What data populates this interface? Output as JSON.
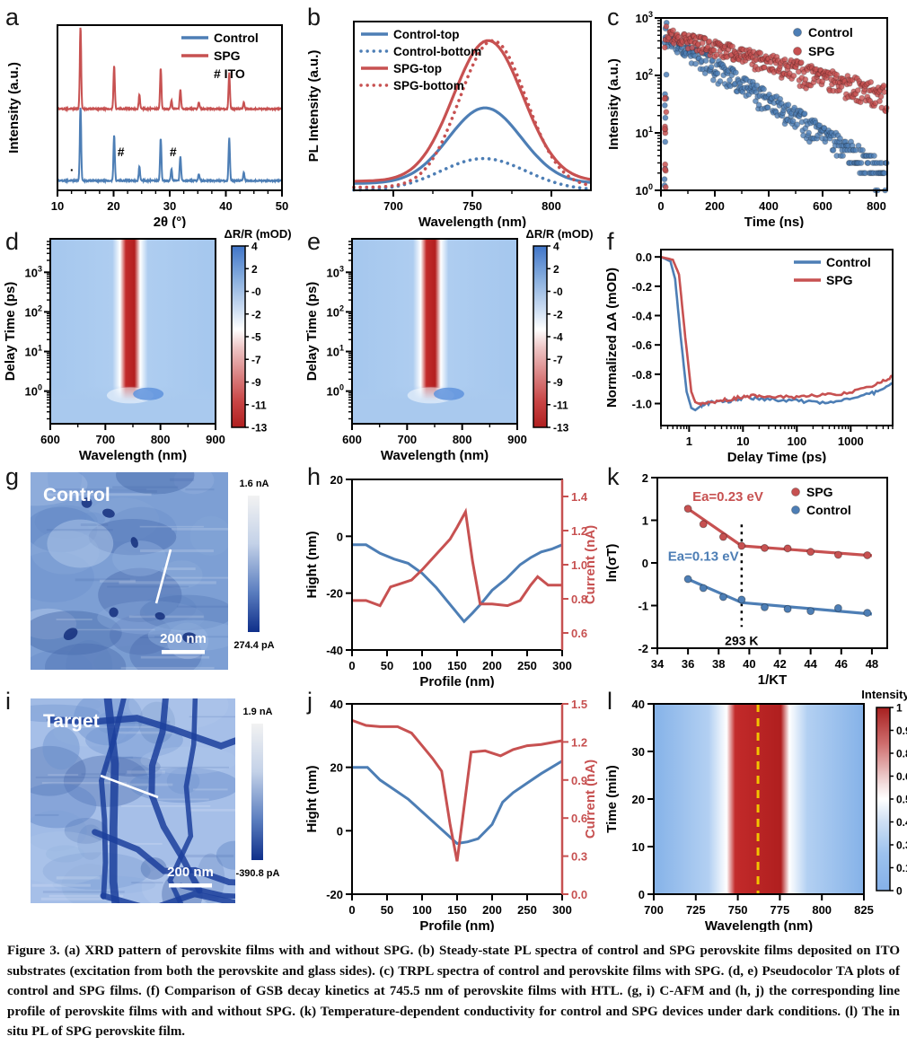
{
  "figure": {
    "caption": "Figure 3. (a) XRD pattern of perovskite films with and without SPG. (b) Steady-state PL spectra of control and SPG perovskite films deposited on ITO substrates (excitation from both the perovskite and glass sides). (c) TRPL spectra of control and perovskite films with SPG. (d, e) Pseudocolor TA plots of control and SPG films. (f) Comparison of GSB decay kinetics at 745.5 nm of perovskite films with HTL. (g, i) C-AFM and (h, j) the corresponding line profile of perovskite films with and without SPG. (k) Temperature-dependent conductivity for control and SPG devices under dark conditions. (l) The in situ PL of SPG perovskite film."
  },
  "panels": {
    "a": "a",
    "b": "b",
    "c": "c",
    "d": "d",
    "e": "e",
    "f": "f",
    "g": "g",
    "h": "h",
    "i": "i",
    "j": "j",
    "k": "k",
    "l": "l"
  },
  "colors": {
    "control": "#4d7eb5",
    "spg": "#c75151",
    "heat_blue": "#a9c9ee",
    "heat_red": "#bf2026",
    "afm_dark": "#142f7c",
    "yellow": "#f2c200"
  },
  "chart_data": [
    {
      "id": "a",
      "type": "line",
      "xlabel": "2θ (°)",
      "ylabel": "Intensity (a.u.)",
      "xlim": [
        10,
        50
      ],
      "xticks": [
        10,
        20,
        30,
        40,
        50
      ],
      "legend": [
        {
          "label": "Control",
          "color": "control"
        },
        {
          "label": "SPG",
          "color": "spg"
        }
      ],
      "legend_note": "# ITO",
      "peak_positions": [
        14.1,
        20.1,
        24.6,
        28.4,
        30.3,
        31.9,
        35.2,
        40.6,
        43.2
      ],
      "series": [
        {
          "name": "Control",
          "color": "control",
          "base_y": 198,
          "peak_heights": [
            0.9,
            0.55,
            0.17,
            0.52,
            0.14,
            0.3,
            0.08,
            0.52,
            0.1
          ]
        },
        {
          "name": "SPG",
          "color": "spg",
          "base_y": 118,
          "peak_heights": [
            1.0,
            0.52,
            0.17,
            0.5,
            0.1,
            0.24,
            0.08,
            0.44,
            0.08
          ]
        }
      ],
      "annotations": [
        {
          "text": "#",
          "x": 21.3
        },
        {
          "text": "#",
          "x": 30.6
        },
        {
          "text": "·",
          "x": 12.6
        }
      ]
    },
    {
      "id": "b",
      "type": "gauss",
      "xlabel": "Wavelength (nm)",
      "ylabel": "PL Intensity (a.u.)",
      "xlim": [
        675,
        825
      ],
      "xticks": [
        700,
        750,
        800
      ],
      "series": [
        {
          "name": "Control-top",
          "style": "solid",
          "color": "control",
          "center": 758,
          "sigma": 23,
          "amp": 0.5,
          "base": 0.045
        },
        {
          "name": "Control-bottom",
          "style": "dotted",
          "color": "control",
          "center": 757,
          "sigma": 27,
          "amp": 0.21,
          "base": 0.0
        },
        {
          "name": "SPG-top",
          "style": "solid",
          "color": "spg",
          "center": 760,
          "sigma": 22,
          "amp": 0.93,
          "base": 0.06
        },
        {
          "name": "SPG-bottom",
          "style": "dotted",
          "color": "spg",
          "center": 763,
          "sigma": 21,
          "amp": 0.97,
          "base": 0.02
        }
      ]
    },
    {
      "id": "c",
      "type": "scatter-decay",
      "xlabel": "Time (ns)",
      "ylabel": "Intensity (a.u.)",
      "xlim": [
        0,
        840
      ],
      "xticks": [
        0,
        200,
        400,
        600,
        800
      ],
      "ylog": [
        1,
        1000
      ],
      "rise_time": 18,
      "series": [
        {
          "name": "Control",
          "color": "control",
          "amp": 520,
          "tau": 150
        },
        {
          "name": "SPG",
          "color": "spg",
          "amp": 560,
          "tau": 330
        }
      ]
    },
    {
      "id": "d",
      "type": "heatmap-ta",
      "xlabel": "Wavelength (nm)",
      "ylabel": "Delay Time (ps)",
      "xlim": [
        600,
        900
      ],
      "xticks": [
        600,
        700,
        800,
        900
      ],
      "ylog_decades": [
        0,
        1,
        2,
        3
      ],
      "band_center": 745,
      "band_halfwidth": 17,
      "colorbar": {
        "title": "ΔR/R (mOD)",
        "ticks": [
          "4",
          "2",
          "-0",
          "-2",
          "-5",
          "-7",
          "-9",
          "-11",
          "-13"
        ]
      }
    },
    {
      "id": "e",
      "type": "heatmap-ta",
      "xlabel": "Wavelength (nm)",
      "ylabel": "Delay Time (ps)",
      "xlim": [
        600,
        900
      ],
      "xticks": [
        600,
        700,
        800,
        900
      ],
      "ylog_decades": [
        0,
        1,
        2,
        3
      ],
      "band_center": 743,
      "band_halfwidth": 17,
      "colorbar": {
        "title": "ΔR/R (mOD)",
        "ticks": [
          "4",
          "2",
          "-0",
          "-2",
          "-4",
          "-7",
          "-9",
          "-11",
          "-13"
        ]
      }
    },
    {
      "id": "f",
      "type": "line-logx",
      "xlabel": "Delay Time (ps)",
      "ylabel": "Normalized ΔA (mOD)",
      "xlog": [
        0.3,
        6000
      ],
      "xticks": [
        1,
        10,
        100,
        1000
      ],
      "ylim": [
        -1.15,
        0.05
      ],
      "yticks": [
        0.0,
        -0.2,
        -0.4,
        -0.6,
        -0.8,
        -1.0
      ],
      "series": [
        {
          "name": "Control",
          "color": "control",
          "points": [
            [
              0.3,
              0
            ],
            [
              0.45,
              -0.03
            ],
            [
              0.55,
              -0.15
            ],
            [
              0.7,
              -0.55
            ],
            [
              0.9,
              -0.92
            ],
            [
              1.1,
              -1.03
            ],
            [
              1.3,
              -1.045
            ],
            [
              1.6,
              -1.02
            ],
            [
              2,
              -1.0
            ],
            [
              3,
              -0.99
            ],
            [
              5,
              -0.985
            ],
            [
              8,
              -0.97
            ],
            [
              12,
              -0.96
            ],
            [
              20,
              -0.965
            ],
            [
              40,
              -0.975
            ],
            [
              80,
              -0.98
            ],
            [
              150,
              -0.985
            ],
            [
              300,
              -0.99
            ],
            [
              600,
              -0.985
            ],
            [
              1200,
              -0.965
            ],
            [
              2500,
              -0.93
            ],
            [
              4000,
              -0.9
            ],
            [
              6000,
              -0.86
            ]
          ]
        },
        {
          "name": "SPG",
          "color": "spg",
          "points": [
            [
              0.3,
              0
            ],
            [
              0.5,
              -0.02
            ],
            [
              0.65,
              -0.12
            ],
            [
              0.85,
              -0.55
            ],
            [
              1.1,
              -0.92
            ],
            [
              1.3,
              -0.99
            ],
            [
              1.5,
              -1.0
            ],
            [
              2,
              -0.995
            ],
            [
              3,
              -0.985
            ],
            [
              5,
              -0.975
            ],
            [
              8,
              -0.96
            ],
            [
              12,
              -0.95
            ],
            [
              20,
              -0.945
            ],
            [
              40,
              -0.95
            ],
            [
              80,
              -0.955
            ],
            [
              150,
              -0.95
            ],
            [
              300,
              -0.945
            ],
            [
              600,
              -0.935
            ],
            [
              1200,
              -0.915
            ],
            [
              2500,
              -0.88
            ],
            [
              4000,
              -0.85
            ],
            [
              6000,
              -0.81
            ]
          ]
        }
      ]
    },
    {
      "id": "g",
      "type": "afm",
      "label": "Control",
      "scalebar": "200 nm",
      "colorbar_top": "1.6 nA",
      "colorbar_bottom": "274.4 pA"
    },
    {
      "id": "h",
      "type": "dual-line",
      "xlabel": "Profile (nm)",
      "ylabel_left": "Hight (nm)",
      "ylabel_right": "Current (nA)",
      "xlim": [
        0,
        300
      ],
      "xticks": [
        0,
        50,
        100,
        150,
        200,
        250,
        300
      ],
      "ylim_left": [
        -40,
        20
      ],
      "yticks_left": [
        20,
        0,
        -20,
        -40
      ],
      "ylim_right": [
        0.5,
        1.5
      ],
      "yticks_right": [
        0.6,
        0.8,
        1.0,
        1.2,
        1.4
      ],
      "height_points": [
        [
          0,
          -3
        ],
        [
          20,
          -3
        ],
        [
          40,
          -6
        ],
        [
          60,
          -8
        ],
        [
          80,
          -9.5
        ],
        [
          100,
          -13
        ],
        [
          120,
          -18
        ],
        [
          140,
          -24
        ],
        [
          160,
          -30
        ],
        [
          172,
          -27
        ],
        [
          185,
          -23.5
        ],
        [
          200,
          -19
        ],
        [
          220,
          -15
        ],
        [
          240,
          -10
        ],
        [
          255,
          -7.5
        ],
        [
          270,
          -5.5
        ],
        [
          285,
          -4.5
        ],
        [
          300,
          -3
        ]
      ],
      "current_points": [
        [
          0,
          0.79
        ],
        [
          20,
          0.79
        ],
        [
          40,
          0.76
        ],
        [
          55,
          0.87
        ],
        [
          70,
          0.89
        ],
        [
          85,
          0.91
        ],
        [
          100,
          0.97
        ],
        [
          120,
          1.06
        ],
        [
          140,
          1.15
        ],
        [
          150,
          1.22
        ],
        [
          162,
          1.31
        ],
        [
          172,
          1.02
        ],
        [
          183,
          0.77
        ],
        [
          200,
          0.77
        ],
        [
          222,
          0.76
        ],
        [
          240,
          0.79
        ],
        [
          255,
          0.88
        ],
        [
          265,
          0.93
        ],
        [
          280,
          0.88
        ],
        [
          300,
          0.88
        ]
      ]
    },
    {
      "id": "k",
      "type": "scatter-fit",
      "xlabel": "1/KT",
      "ylabel": "ln(σT)",
      "xlim": [
        34,
        49
      ],
      "xticks": [
        34,
        36,
        38,
        40,
        42,
        44,
        46,
        48
      ],
      "ylim": [
        -2,
        2
      ],
      "yticks": [
        -2,
        -1,
        0,
        1,
        2
      ],
      "series": [
        {
          "name": "Control",
          "color": "control",
          "points": [
            [
              36,
              -0.38
            ],
            [
              37,
              -0.59
            ],
            [
              38.3,
              -0.8
            ],
            [
              39.5,
              -0.86
            ],
            [
              41,
              -1.04
            ],
            [
              42.5,
              -1.08
            ],
            [
              44,
              -1.13
            ],
            [
              45.8,
              -1.06
            ],
            [
              47.7,
              -1.17
            ]
          ],
          "fit": [
            [
              35.8,
              -0.35
            ],
            [
              39.5,
              -0.93
            ],
            [
              48,
              -1.2
            ]
          ]
        },
        {
          "name": "SPG",
          "color": "spg",
          "points": [
            [
              36,
              1.27
            ],
            [
              37,
              0.91
            ],
            [
              38.3,
              0.61
            ],
            [
              39.5,
              0.4
            ],
            [
              41,
              0.35
            ],
            [
              42.5,
              0.34
            ],
            [
              44,
              0.26
            ],
            [
              45.8,
              0.19
            ],
            [
              47.7,
              0.18
            ]
          ],
          "fit": [
            [
              35.8,
              1.32
            ],
            [
              39.5,
              0.4
            ],
            [
              48,
              0.17
            ]
          ]
        }
      ],
      "annotations": [
        {
          "text": "Ea=0.23 eV",
          "color": "spg",
          "x": 38.6,
          "y": 1.45
        },
        {
          "text": "Ea=0.13 eV",
          "color": "control",
          "x": 37.0,
          "y": 0.05
        }
      ],
      "vline": {
        "x": 39.5,
        "label": "293 K",
        "y_top": 0.9,
        "y_bottom": -1.5
      }
    },
    {
      "id": "i",
      "type": "afm",
      "label": "Target",
      "scalebar": "200 nm",
      "colorbar_top": "1.9 nA",
      "colorbar_bottom": "-390.8 pA"
    },
    {
      "id": "j",
      "type": "dual-line",
      "xlabel": "Profile (nm)",
      "ylabel_left": "Hight (nm)",
      "ylabel_right": "Current (nA)",
      "xlim": [
        0,
        300
      ],
      "xticks": [
        0,
        50,
        100,
        150,
        200,
        250,
        300
      ],
      "ylim_left": [
        -20,
        40
      ],
      "yticks_left": [
        40,
        20,
        0,
        -20
      ],
      "ylim_right": [
        0.0,
        1.5
      ],
      "yticks_right": [
        0.0,
        0.3,
        0.6,
        0.9,
        1.2,
        1.5
      ],
      "height_points": [
        [
          0,
          20
        ],
        [
          22,
          20
        ],
        [
          40,
          16
        ],
        [
          60,
          13
        ],
        [
          80,
          10
        ],
        [
          100,
          6
        ],
        [
          120,
          2
        ],
        [
          135,
          -1
        ],
        [
          150,
          -4
        ],
        [
          165,
          -3.5
        ],
        [
          180,
          -2.5
        ],
        [
          200,
          2
        ],
        [
          215,
          9
        ],
        [
          230,
          12
        ],
        [
          250,
          15
        ],
        [
          270,
          18
        ],
        [
          285,
          20
        ],
        [
          300,
          22
        ]
      ],
      "current_points": [
        [
          0,
          1.37
        ],
        [
          20,
          1.33
        ],
        [
          40,
          1.32
        ],
        [
          65,
          1.32
        ],
        [
          85,
          1.27
        ],
        [
          100,
          1.17
        ],
        [
          115,
          1.07
        ],
        [
          128,
          0.97
        ],
        [
          140,
          0.55
        ],
        [
          150,
          0.26
        ],
        [
          158,
          0.6
        ],
        [
          170,
          1.12
        ],
        [
          190,
          1.13
        ],
        [
          212,
          1.09
        ],
        [
          230,
          1.14
        ],
        [
          250,
          1.17
        ],
        [
          270,
          1.18
        ],
        [
          300,
          1.21
        ]
      ]
    },
    {
      "id": "l",
      "type": "heatmap-pl",
      "xlabel": "Wavelength (nm)",
      "ylabel": "Time (min)",
      "xlim": [
        700,
        825
      ],
      "xticks": [
        700,
        725,
        750,
        775,
        800,
        825
      ],
      "ylim": [
        0,
        40
      ],
      "yticks": [
        0,
        10,
        20,
        30,
        40
      ],
      "band_center": 762,
      "band_halfwidth": 18,
      "dashed_line_x": 762,
      "colorbar": {
        "title": "Intensity",
        "ticks": [
          "1",
          "0.9",
          "0.8",
          "0.6",
          "0.5",
          "0.4",
          "0.3",
          "0.1",
          "0"
        ]
      }
    }
  ]
}
